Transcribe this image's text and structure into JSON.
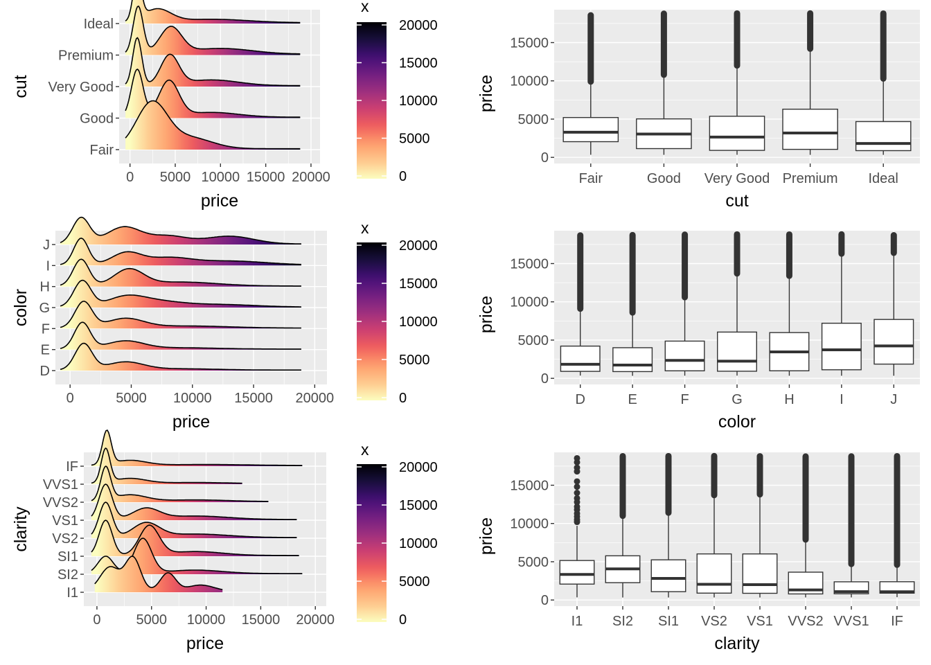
{
  "palette": [
    "#fcfdbf",
    "#fec98d",
    "#fe9f6d",
    "#f1605d",
    "#cd4071",
    "#9e2f7f",
    "#721f81",
    "#440f76",
    "#180f3d",
    "#000004"
  ],
  "colors": {
    "panel_bg": "#ebebeb",
    "grid": "#ffffff",
    "box_stroke": "#333333"
  },
  "chart_data": [
    {
      "type": "ridgeline",
      "xlabel": "price",
      "ylabel": "cut",
      "categories": [
        "Fair",
        "Good",
        "Very Good",
        "Premium",
        "Ideal"
      ],
      "xlim": [
        -1200,
        21000
      ],
      "xticks": [
        0,
        5000,
        10000,
        15000,
        20000
      ],
      "xtick_labels": [
        "0",
        "5000",
        "10000",
        "15000",
        "20000"
      ],
      "x_extent": [
        -500,
        18800
      ],
      "legend": {
        "title": "x",
        "range": [
          0,
          20000
        ],
        "ticks": [
          "20000",
          "15000",
          "10000",
          "5000",
          "0"
        ]
      },
      "peaks": [
        {
          "category": "Fair",
          "bumps": [
            [
              2400,
              1.0,
              1700
            ],
            [
              6500,
              0.25,
              2500
            ]
          ]
        },
        {
          "category": "Good",
          "bumps": [
            [
              800,
              1.0,
              650
            ],
            [
              4300,
              0.75,
              1100
            ],
            [
              9000,
              0.1,
              3000
            ]
          ]
        },
        {
          "category": "Very Good",
          "bumps": [
            [
              800,
              1.0,
              500
            ],
            [
              4400,
              0.62,
              1000
            ],
            [
              9000,
              0.12,
              3000
            ]
          ]
        },
        {
          "category": "Premium",
          "bumps": [
            [
              900,
              1.0,
              550
            ],
            [
              4500,
              0.55,
              1200
            ],
            [
              10000,
              0.12,
              3500
            ]
          ]
        },
        {
          "category": "Ideal",
          "bumps": [
            [
              800,
              1.0,
              450
            ],
            [
              3000,
              0.3,
              1500
            ],
            [
              9000,
              0.08,
              4000
            ]
          ]
        }
      ]
    },
    {
      "type": "boxplot",
      "xlabel": "cut",
      "ylabel": "price",
      "categories": [
        "Fair",
        "Good",
        "Very Good",
        "Premium",
        "Ideal"
      ],
      "ylim": [
        -800,
        19300
      ],
      "yticks": [
        0,
        5000,
        10000,
        15000
      ],
      "ytick_labels": [
        "0",
        "5000",
        "10000",
        "15000"
      ],
      "boxes": [
        {
          "category": "Fair",
          "whisker_low": 337,
          "q1": 2050,
          "median": 3282,
          "q3": 5206,
          "whisker_high": 9900,
          "outlier_max": 18574
        },
        {
          "category": "Good",
          "whisker_low": 327,
          "q1": 1145,
          "median": 3050,
          "q3": 5028,
          "whisker_high": 10800,
          "outlier_max": 18788
        },
        {
          "category": "Very Good",
          "whisker_low": 336,
          "q1": 912,
          "median": 2648,
          "q3": 5373,
          "whisker_high": 12000,
          "outlier_max": 18818
        },
        {
          "category": "Premium",
          "whisker_low": 326,
          "q1": 1046,
          "median": 3185,
          "q3": 6296,
          "whisker_high": 14200,
          "outlier_max": 18823
        },
        {
          "category": "Ideal",
          "whisker_low": 326,
          "q1": 878,
          "median": 1810,
          "q3": 4678,
          "whisker_high": 10300,
          "outlier_max": 18806
        }
      ]
    },
    {
      "type": "ridgeline",
      "xlabel": "price",
      "ylabel": "color",
      "categories": [
        "D",
        "E",
        "F",
        "G",
        "H",
        "I",
        "J"
      ],
      "xlim": [
        -1200,
        21000
      ],
      "xticks": [
        0,
        5000,
        10000,
        15000,
        20000
      ],
      "xtick_labels": [
        "0",
        "5000",
        "10000",
        "15000",
        "20000"
      ],
      "x_extent": [
        -800,
        18900
      ],
      "legend": {
        "title": "x",
        "range": [
          0,
          20000
        ],
        "ticks": [
          "20000",
          "15000",
          "10000",
          "5000",
          "0"
        ]
      },
      "peaks": [
        {
          "category": "D",
          "bumps": [
            [
              1100,
              1.0,
              700
            ],
            [
              4500,
              0.3,
              1500
            ],
            [
              9000,
              0.05,
              3000
            ]
          ]
        },
        {
          "category": "E",
          "bumps": [
            [
              1000,
              1.0,
              650
            ],
            [
              4500,
              0.3,
              1500
            ],
            [
              9000,
              0.05,
              3000
            ]
          ]
        },
        {
          "category": "F",
          "bumps": [
            [
              1100,
              1.0,
              700
            ],
            [
              4500,
              0.35,
              1500
            ],
            [
              9500,
              0.08,
              3500
            ]
          ]
        },
        {
          "category": "G",
          "bumps": [
            [
              1000,
              1.0,
              700
            ],
            [
              4500,
              0.35,
              1500
            ],
            [
              7000,
              0.2,
              2000
            ],
            [
              12000,
              0.1,
              3000
            ]
          ]
        },
        {
          "category": "H",
          "bumps": [
            [
              900,
              1.0,
              650
            ],
            [
              4800,
              0.6,
              1200
            ],
            [
              9000,
              0.15,
              3000
            ]
          ]
        },
        {
          "category": "I",
          "bumps": [
            [
              900,
              1.0,
              600
            ],
            [
              4600,
              0.45,
              1200
            ],
            [
              8000,
              0.25,
              1800
            ],
            [
              13000,
              0.15,
              3000
            ]
          ]
        },
        {
          "category": "J",
          "bumps": [
            [
              900,
              1.0,
              700
            ],
            [
              4400,
              0.65,
              1400
            ],
            [
              8000,
              0.3,
              1500
            ],
            [
              13000,
              0.3,
              2000
            ]
          ]
        }
      ]
    },
    {
      "type": "boxplot",
      "xlabel": "color",
      "ylabel": "price",
      "categories": [
        "D",
        "E",
        "F",
        "G",
        "H",
        "I",
        "J"
      ],
      "ylim": [
        -800,
        19300
      ],
      "yticks": [
        0,
        5000,
        10000,
        15000
      ],
      "ytick_labels": [
        "0",
        "5000",
        "10000",
        "15000"
      ],
      "boxes": [
        {
          "category": "D",
          "whisker_low": 357,
          "q1": 911,
          "median": 1838,
          "q3": 4214,
          "whisker_high": 9100,
          "outlier_max": 18693
        },
        {
          "category": "E",
          "whisker_low": 326,
          "q1": 882,
          "median": 1739,
          "q3": 4003,
          "whisker_high": 8600,
          "outlier_max": 18731
        },
        {
          "category": "F",
          "whisker_low": 342,
          "q1": 982,
          "median": 2344,
          "q3": 4868,
          "whisker_high": 10600,
          "outlier_max": 18791
        },
        {
          "category": "G",
          "whisker_low": 354,
          "q1": 931,
          "median": 2242,
          "q3": 6048,
          "whisker_high": 13700,
          "outlier_max": 18818
        },
        {
          "category": "H",
          "whisker_low": 337,
          "q1": 984,
          "median": 3460,
          "q3": 5980,
          "whisker_high": 13400,
          "outlier_max": 18803
        },
        {
          "category": "I",
          "whisker_low": 334,
          "q1": 1120,
          "median": 3730,
          "q3": 7202,
          "whisker_high": 16300,
          "outlier_max": 18823
        },
        {
          "category": "J",
          "whisker_low": 335,
          "q1": 1860,
          "median": 4234,
          "q3": 7695,
          "whisker_high": 16400,
          "outlier_max": 18710
        }
      ]
    },
    {
      "type": "ridgeline",
      "xlabel": "price",
      "ylabel": "clarity",
      "categories": [
        "I1",
        "SI2",
        "SI1",
        "VS2",
        "VS1",
        "VVS2",
        "VVS1",
        "IF"
      ],
      "xlim": [
        -1200,
        21000
      ],
      "xticks": [
        0,
        5000,
        10000,
        15000,
        20000
      ],
      "xtick_labels": [
        "0",
        "5000",
        "10000",
        "15000",
        "20000"
      ],
      "legend": {
        "title": "x",
        "range": [
          0,
          20000
        ],
        "ticks": [
          "20000",
          "15000",
          "10000",
          "5000",
          "0"
        ]
      },
      "x_extents": [
        [
          -200,
          11500
        ],
        [
          -500,
          18800
        ],
        [
          -500,
          18500
        ],
        [
          -500,
          18300
        ],
        [
          -500,
          18300
        ],
        [
          -500,
          15700
        ],
        [
          -500,
          13300
        ],
        [
          -500,
          18800
        ]
      ],
      "peaks": [
        {
          "category": "I1",
          "bumps": [
            [
              1200,
              0.4,
              900
            ],
            [
              3300,
              0.55,
              700
            ],
            [
              6500,
              0.3,
              700
            ],
            [
              9500,
              0.1,
              1200
            ]
          ]
        },
        {
          "category": "SI2",
          "bumps": [
            [
              800,
              0.5,
              700
            ],
            [
              4200,
              1.0,
              800
            ],
            [
              9000,
              0.1,
              2500
            ]
          ]
        },
        {
          "category": "SI1",
          "bumps": [
            [
              800,
              0.9,
              600
            ],
            [
              4800,
              0.75,
              900
            ],
            [
              9000,
              0.1,
              2500
            ]
          ]
        },
        {
          "category": "VS2",
          "bumps": [
            [
              800,
              1.0,
              600
            ],
            [
              4500,
              0.4,
              1200
            ],
            [
              9000,
              0.1,
              3000
            ]
          ]
        },
        {
          "category": "VS1",
          "bumps": [
            [
              800,
              1.0,
              600
            ],
            [
              4500,
              0.3,
              1200
            ],
            [
              9000,
              0.1,
              3000
            ]
          ]
        },
        {
          "category": "VVS2",
          "bumps": [
            [
              800,
              1.0,
              450
            ],
            [
              3000,
              0.2,
              1500
            ],
            [
              9000,
              0.05,
              3000
            ]
          ]
        },
        {
          "category": "VVS1",
          "bumps": [
            [
              800,
              1.0,
              400
            ],
            [
              3000,
              0.15,
              1500
            ],
            [
              9000,
              0.03,
              3000
            ]
          ]
        },
        {
          "category": "IF",
          "bumps": [
            [
              900,
              1.0,
              400
            ],
            [
              3000,
              0.15,
              1500
            ],
            [
              10000,
              0.03,
              4000
            ]
          ]
        }
      ]
    },
    {
      "type": "boxplot",
      "xlabel": "clarity",
      "ylabel": "price",
      "categories": [
        "I1",
        "SI2",
        "SI1",
        "VS2",
        "VS1",
        "VVS2",
        "VVS1",
        "IF"
      ],
      "ylim": [
        -800,
        19300
      ],
      "yticks": [
        0,
        5000,
        10000,
        15000
      ],
      "ytick_labels": [
        "0",
        "5000",
        "10000",
        "15000"
      ],
      "boxes": [
        {
          "category": "I1",
          "whisker_low": 345,
          "q1": 2080,
          "median": 3344,
          "q3": 5161,
          "whisker_high": 9700,
          "outlier_max": 18531,
          "sparse_outliers": true
        },
        {
          "category": "SI2",
          "whisker_low": 326,
          "q1": 2264,
          "median": 4072,
          "q3": 5777,
          "whisker_high": 11000,
          "outlier_max": 18804
        },
        {
          "category": "SI1",
          "whisker_low": 326,
          "q1": 1089,
          "median": 2822,
          "q3": 5250,
          "whisker_high": 11400,
          "outlier_max": 18818
        },
        {
          "category": "VS2",
          "whisker_low": 334,
          "q1": 900,
          "median": 2054,
          "q3": 6024,
          "whisker_high": 13700,
          "outlier_max": 18823
        },
        {
          "category": "VS1",
          "whisker_low": 327,
          "q1": 876,
          "median": 2005,
          "q3": 6023,
          "whisker_high": 13800,
          "outlier_max": 18795
        },
        {
          "category": "VVS2",
          "whisker_low": 336,
          "q1": 794,
          "median": 1311,
          "q3": 3638,
          "whisker_high": 7900,
          "outlier_max": 18768
        },
        {
          "category": "VVS1",
          "whisker_low": 336,
          "q1": 816,
          "median": 1093,
          "q3": 2379,
          "whisker_high": 4700,
          "outlier_max": 18777
        },
        {
          "category": "IF",
          "whisker_low": 369,
          "q1": 895,
          "median": 1080,
          "q3": 2388,
          "whisker_high": 4600,
          "outlier_max": 18806
        }
      ]
    }
  ]
}
